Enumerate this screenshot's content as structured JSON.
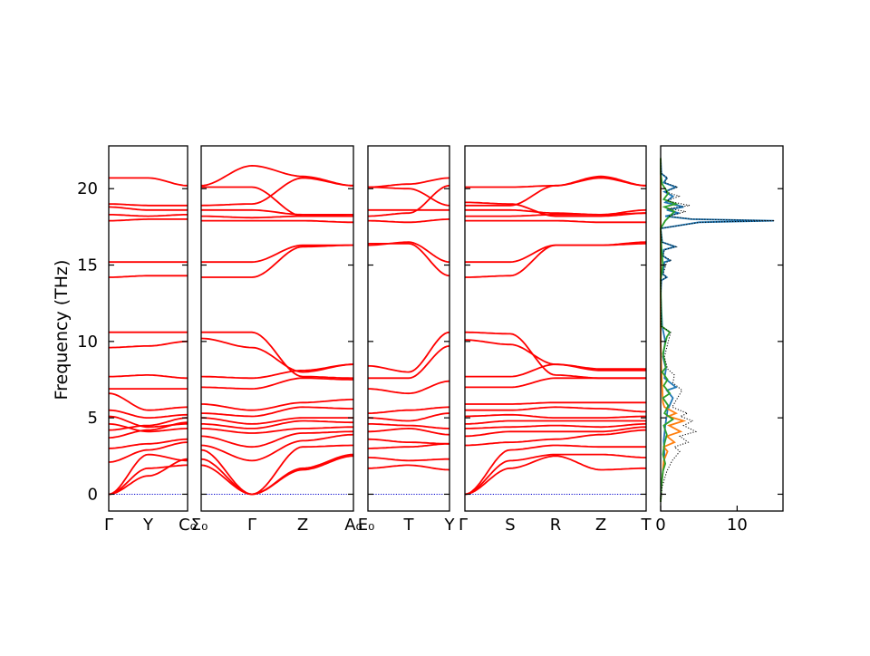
{
  "chart_data": {
    "type": "line",
    "ylabel": "Frequency (THz)",
    "ylim": [
      -1.1,
      22.8
    ],
    "y_ticks": [
      0,
      5,
      10,
      15,
      20
    ],
    "line_color": "#ff0000",
    "zero_line_color": "#0000cc",
    "panels": [
      {
        "segments": [
          {
            "start_label": "Γ",
            "end_label": "Y"
          },
          {
            "start_label": "Y",
            "end_label": "C₀"
          }
        ],
        "tick_labels": [
          "Γ",
          "Y",
          "C₀"
        ],
        "bands": [
          [
            0.0,
            1.7,
            1.9
          ],
          [
            0.0,
            1.2,
            2.3
          ],
          [
            0.0,
            2.6,
            2.2
          ],
          [
            2.1,
            2.9,
            3.4
          ],
          [
            3.0,
            3.3,
            3.6
          ],
          [
            3.7,
            4.2,
            4.7
          ],
          [
            4.2,
            4.5,
            5.0
          ],
          [
            4.6,
            4.1,
            4.3
          ],
          [
            5.1,
            4.4,
            4.6
          ],
          [
            5.5,
            5.0,
            5.2
          ],
          [
            6.6,
            5.5,
            5.7
          ],
          [
            6.9,
            6.9,
            6.9
          ],
          [
            7.7,
            7.8,
            7.6
          ],
          [
            9.6,
            9.7,
            10.0
          ],
          [
            10.6,
            10.6,
            10.6
          ],
          [
            14.2,
            14.3,
            14.3
          ],
          [
            15.2,
            15.2,
            15.2
          ],
          [
            17.9,
            18.0,
            18.0
          ],
          [
            18.3,
            18.2,
            18.3
          ],
          [
            18.8,
            18.6,
            18.6
          ],
          [
            19.0,
            18.9,
            18.9
          ],
          [
            20.7,
            20.7,
            20.2
          ]
        ]
      },
      {
        "segments": [
          {
            "start_label": "Σ₀",
            "end_label": "Γ"
          },
          {
            "start_label": "Γ",
            "end_label": "Z"
          },
          {
            "start_label": "Z",
            "end_label": "A₀"
          }
        ],
        "tick_labels": [
          "Σ₀",
          "Γ",
          "Z",
          "A₀"
        ],
        "bands": [
          [
            1.9,
            0.0,
            1.6,
            2.5
          ],
          [
            2.3,
            0.0,
            1.7,
            2.6
          ],
          [
            2.9,
            0.0,
            3.1,
            3.2
          ],
          [
            3.2,
            2.2,
            3.5,
            3.9
          ],
          [
            3.8,
            3.1,
            4.0,
            4.1
          ],
          [
            4.3,
            4.0,
            4.3,
            4.4
          ],
          [
            4.6,
            4.3,
            4.8,
            4.7
          ],
          [
            5.0,
            4.6,
            5.0,
            5.0
          ],
          [
            5.3,
            5.1,
            5.7,
            5.6
          ],
          [
            5.9,
            5.5,
            6.0,
            6.2
          ],
          [
            7.0,
            6.9,
            7.6,
            7.5
          ],
          [
            7.7,
            7.6,
            8.1,
            8.5
          ],
          [
            10.2,
            9.6,
            8.0,
            8.5
          ],
          [
            10.6,
            10.6,
            7.7,
            7.6
          ],
          [
            14.2,
            14.2,
            16.2,
            16.3
          ],
          [
            15.2,
            15.2,
            16.3,
            16.3
          ],
          [
            17.9,
            17.9,
            17.9,
            17.8
          ],
          [
            18.2,
            18.1,
            18.2,
            18.2
          ],
          [
            18.6,
            18.6,
            18.3,
            18.3
          ],
          [
            18.9,
            19.0,
            20.7,
            20.2
          ],
          [
            20.1,
            20.1,
            18.2,
            18.3
          ],
          [
            20.2,
            21.5,
            20.8,
            20.2
          ]
        ]
      },
      {
        "segments": [
          {
            "start_label": "E₀",
            "end_label": "T"
          },
          {
            "start_label": "T",
            "end_label": "Y"
          }
        ],
        "tick_labels": [
          "E₀",
          "T",
          "Y"
        ],
        "bands": [
          [
            1.7,
            1.9,
            1.6
          ],
          [
            2.4,
            2.2,
            2.3
          ],
          [
            3.0,
            3.1,
            3.3
          ],
          [
            3.6,
            3.4,
            3.3
          ],
          [
            4.1,
            4.3,
            3.9
          ],
          [
            4.6,
            4.5,
            4.3
          ],
          [
            5.0,
            4.8,
            5.3
          ],
          [
            5.3,
            5.5,
            5.7
          ],
          [
            6.9,
            6.6,
            7.4
          ],
          [
            7.6,
            7.6,
            9.7
          ],
          [
            8.4,
            8.0,
            10.6
          ],
          [
            16.3,
            16.5,
            15.2
          ],
          [
            16.4,
            16.4,
            14.3
          ],
          [
            17.9,
            17.8,
            18.0
          ],
          [
            18.2,
            18.4,
            20.2
          ],
          [
            18.6,
            18.6,
            18.6
          ],
          [
            20.1,
            20.3,
            20.7
          ],
          [
            20.1,
            20.0,
            18.9
          ]
        ]
      },
      {
        "segments": [
          {
            "start_label": "Γ",
            "end_label": "S"
          },
          {
            "start_label": "S",
            "end_label": "R"
          },
          {
            "start_label": "R",
            "end_label": "Z"
          },
          {
            "start_label": "Z",
            "end_label": "T"
          }
        ],
        "tick_labels": [
          "Γ",
          "S",
          "R",
          "Z",
          "T"
        ],
        "bands": [
          [
            0.0,
            1.7,
            2.5,
            1.6,
            1.7
          ],
          [
            0.0,
            2.2,
            2.6,
            2.6,
            2.4
          ],
          [
            0.0,
            2.9,
            3.2,
            3.1,
            3.1
          ],
          [
            3.2,
            3.4,
            3.6,
            3.9,
            4.2
          ],
          [
            3.8,
            4.1,
            4.1,
            4.1,
            4.4
          ],
          [
            4.3,
            4.4,
            4.5,
            4.4,
            4.6
          ],
          [
            4.6,
            4.8,
            4.8,
            4.8,
            4.8
          ],
          [
            5.1,
            5.2,
            5.0,
            5.0,
            5.1
          ],
          [
            5.5,
            5.5,
            5.7,
            5.6,
            5.4
          ],
          [
            5.9,
            5.9,
            6.0,
            6.0,
            6.0
          ],
          [
            7.0,
            7.0,
            7.6,
            7.6,
            7.6
          ],
          [
            7.7,
            7.7,
            8.5,
            8.2,
            8.2
          ],
          [
            10.1,
            9.8,
            8.5,
            8.1,
            8.1
          ],
          [
            10.6,
            10.5,
            7.8,
            7.6,
            7.6
          ],
          [
            14.2,
            14.3,
            16.3,
            16.3,
            16.5
          ],
          [
            15.2,
            15.2,
            16.3,
            16.3,
            16.4
          ],
          [
            17.9,
            17.9,
            17.9,
            17.8,
            17.8
          ],
          [
            18.2,
            18.2,
            18.3,
            18.3,
            18.4
          ],
          [
            18.6,
            18.6,
            18.4,
            18.3,
            18.6
          ],
          [
            18.9,
            18.9,
            20.2,
            20.8,
            20.2
          ],
          [
            20.1,
            20.1,
            20.2,
            20.7,
            20.2
          ],
          [
            19.1,
            19.0,
            18.2,
            18.2,
            18.4
          ]
        ]
      }
    ],
    "dos_panel": {
      "x_ticks": [
        0,
        10
      ],
      "xlim": [
        0,
        16
      ],
      "series": [
        {
          "color": "#1f77b4",
          "points": [
            [
              0.0,
              -0.5
            ],
            [
              0.1,
              0.5
            ],
            [
              0.3,
              1.5
            ],
            [
              0.5,
              2.5
            ],
            [
              0.4,
              3.5
            ],
            [
              0.6,
              4.5
            ],
            [
              0.9,
              5.5
            ],
            [
              1.6,
              6.3
            ],
            [
              0.8,
              6.8
            ],
            [
              2.0,
              7.0
            ],
            [
              0.5,
              7.6
            ],
            [
              0.7,
              8.2
            ],
            [
              0.3,
              9.0
            ],
            [
              0.6,
              10.0
            ],
            [
              0.2,
              11.0
            ],
            [
              0.0,
              13.0
            ],
            [
              0.1,
              14.0
            ],
            [
              0.8,
              14.2
            ],
            [
              0.3,
              14.4
            ],
            [
              0.5,
              15.2
            ],
            [
              1.2,
              15.3
            ],
            [
              0.3,
              15.6
            ],
            [
              0.4,
              16.0
            ],
            [
              1.9,
              16.2
            ],
            [
              0.2,
              16.5
            ],
            [
              0.0,
              17.4
            ],
            [
              5.0,
              17.8
            ],
            [
              14.8,
              17.9
            ],
            [
              4.0,
              18.0
            ],
            [
              0.6,
              18.2
            ],
            [
              2.4,
              18.4
            ],
            [
              0.8,
              18.6
            ],
            [
              3.0,
              18.8
            ],
            [
              0.6,
              19.1
            ],
            [
              1.6,
              19.5
            ],
            [
              0.5,
              19.8
            ],
            [
              2.0,
              20.1
            ],
            [
              0.4,
              20.4
            ],
            [
              0.8,
              20.7
            ],
            [
              0.1,
              21.0
            ],
            [
              0.0,
              22.0
            ]
          ]
        },
        {
          "color": "#ff7f0e",
          "points": [
            [
              0.0,
              -0.5
            ],
            [
              0.1,
              0.5
            ],
            [
              0.3,
              1.5
            ],
            [
              0.4,
              2.2
            ],
            [
              0.9,
              2.8
            ],
            [
              0.4,
              3.1
            ],
            [
              1.8,
              3.4
            ],
            [
              0.8,
              3.8
            ],
            [
              2.6,
              4.1
            ],
            [
              1.1,
              4.5
            ],
            [
              3.0,
              4.8
            ],
            [
              1.0,
              5.1
            ],
            [
              2.0,
              5.3
            ],
            [
              0.5,
              5.7
            ],
            [
              0.3,
              6.0
            ],
            [
              0.2,
              7.0
            ],
            [
              0.1,
              8.0
            ],
            [
              0.0,
              10.0
            ],
            [
              0.0,
              22.0
            ]
          ]
        },
        {
          "color": "#2ca02c",
          "points": [
            [
              0.0,
              -0.5
            ],
            [
              0.1,
              0.5
            ],
            [
              0.3,
              1.5
            ],
            [
              0.6,
              2.0
            ],
            [
              0.3,
              2.6
            ],
            [
              0.5,
              3.3
            ],
            [
              0.8,
              3.9
            ],
            [
              0.4,
              4.5
            ],
            [
              1.6,
              4.9
            ],
            [
              0.5,
              5.3
            ],
            [
              1.0,
              5.8
            ],
            [
              0.3,
              6.3
            ],
            [
              1.2,
              6.6
            ],
            [
              0.4,
              7.1
            ],
            [
              0.9,
              7.5
            ],
            [
              0.2,
              8.0
            ],
            [
              0.7,
              8.3
            ],
            [
              0.3,
              9.2
            ],
            [
              0.8,
              10.3
            ],
            [
              1.2,
              10.6
            ],
            [
              0.1,
              11.0
            ],
            [
              0.0,
              14.0
            ],
            [
              0.3,
              15.0
            ],
            [
              0.1,
              16.2
            ],
            [
              0.0,
              17.4
            ],
            [
              0.6,
              17.9
            ],
            [
              1.8,
              18.5
            ],
            [
              0.5,
              18.8
            ],
            [
              2.0,
              19.0
            ],
            [
              0.4,
              19.3
            ],
            [
              1.0,
              19.7
            ],
            [
              0.2,
              20.3
            ],
            [
              0.0,
              21.0
            ],
            [
              0.0,
              22.0
            ]
          ]
        },
        {
          "color": "#000000",
          "dotted": true,
          "points": [
            [
              0.0,
              -0.5
            ],
            [
              0.2,
              0.5
            ],
            [
              0.8,
              1.5
            ],
            [
              1.5,
              2.2
            ],
            [
              2.5,
              2.8
            ],
            [
              1.8,
              3.1
            ],
            [
              3.6,
              3.4
            ],
            [
              2.5,
              3.8
            ],
            [
              4.6,
              4.1
            ],
            [
              3.0,
              4.5
            ],
            [
              4.2,
              4.8
            ],
            [
              2.6,
              5.1
            ],
            [
              3.5,
              5.3
            ],
            [
              1.5,
              5.7
            ],
            [
              2.2,
              6.3
            ],
            [
              2.8,
              6.8
            ],
            [
              1.6,
              7.3
            ],
            [
              1.8,
              7.8
            ],
            [
              0.9,
              8.2
            ],
            [
              0.5,
              9.0
            ],
            [
              1.0,
              10.0
            ],
            [
              1.3,
              10.6
            ],
            [
              0.1,
              11.0
            ],
            [
              0.0,
              13.0
            ],
            [
              0.1,
              14.0
            ],
            [
              0.8,
              14.2
            ],
            [
              0.3,
              14.4
            ],
            [
              0.8,
              15.2
            ],
            [
              1.4,
              15.3
            ],
            [
              0.3,
              15.6
            ],
            [
              0.5,
              16.0
            ],
            [
              2.0,
              16.2
            ],
            [
              0.2,
              16.5
            ],
            [
              0.0,
              17.4
            ],
            [
              5.2,
              17.8
            ],
            [
              14.9,
              17.9
            ],
            [
              4.2,
              18.0
            ],
            [
              1.0,
              18.2
            ],
            [
              3.3,
              18.5
            ],
            [
              1.0,
              18.7
            ],
            [
              3.8,
              18.9
            ],
            [
              0.8,
              19.2
            ],
            [
              2.4,
              19.5
            ],
            [
              0.6,
              19.8
            ],
            [
              2.2,
              20.1
            ],
            [
              0.5,
              20.4
            ],
            [
              0.9,
              20.7
            ],
            [
              0.1,
              21.0
            ],
            [
              0.0,
              22.0
            ]
          ]
        }
      ]
    }
  }
}
